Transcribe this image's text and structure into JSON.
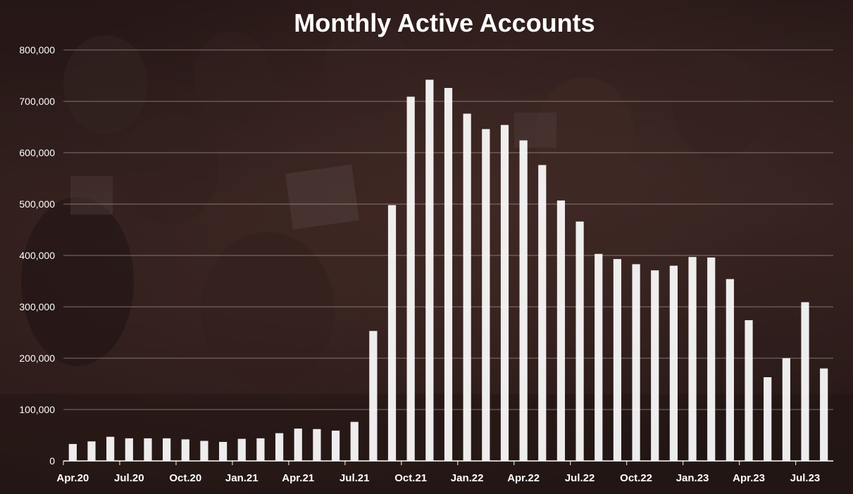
{
  "chart_data": {
    "type": "bar",
    "title": "Monthly Active Accounts",
    "xlabel": "",
    "ylabel": "",
    "ylim": [
      0,
      800000
    ],
    "yticks": [
      "0",
      "100,000",
      "200,000",
      "300,000",
      "400,000",
      "500,000",
      "600,000",
      "700,000",
      "800,000"
    ],
    "ytick_values": [
      0,
      100000,
      200000,
      300000,
      400000,
      500000,
      600000,
      700000,
      800000
    ],
    "xtick_labels": [
      "Apr.20",
      "Jul.20",
      "Oct.20",
      "Jan.21",
      "Apr.21",
      "Jul.21",
      "Oct.21",
      "Jan.22",
      "Apr.22",
      "Jul.22",
      "Oct.22",
      "Jan.23",
      "Apr.23",
      "Jul.23"
    ],
    "categories": [
      "Apr.20",
      "May.20",
      "Jun.20",
      "Jul.20",
      "Aug.20",
      "Sep.20",
      "Oct.20",
      "Nov.20",
      "Dec.20",
      "Jan.21",
      "Feb.21",
      "Mar.21",
      "Apr.21",
      "May.21",
      "Jun.21",
      "Jul.21",
      "Aug.21",
      "Sep.21",
      "Oct.21",
      "Nov.21",
      "Dec.21",
      "Jan.22",
      "Feb.22",
      "Mar.22",
      "Apr.22",
      "May.22",
      "Jun.22",
      "Jul.22",
      "Aug.22",
      "Sep.22",
      "Oct.22",
      "Nov.22",
      "Dec.22",
      "Jan.23",
      "Feb.23",
      "Mar.23",
      "Apr.23",
      "May.23",
      "Jun.23",
      "Jul.23",
      "Aug.23"
    ],
    "values": [
      33000,
      38000,
      47000,
      44000,
      44000,
      44000,
      42000,
      39000,
      37000,
      43000,
      44000,
      54000,
      63000,
      62000,
      59000,
      76000,
      253000,
      498000,
      709000,
      742000,
      726000,
      676000,
      646000,
      654000,
      624000,
      576000,
      507000,
      466000,
      403000,
      393000,
      383000,
      371000,
      380000,
      397000,
      396000,
      354000,
      274000,
      163000,
      200000,
      309000,
      180000
    ],
    "grid": true,
    "legend": "none",
    "bar_color": "#ffffff",
    "grid_color": "#c8b8b4",
    "axis_color": "#ffffff",
    "text_color": "#ffffff"
  }
}
